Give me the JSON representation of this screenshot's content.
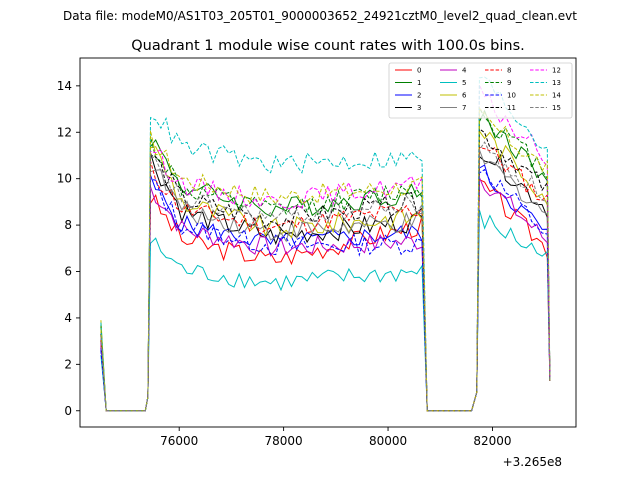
{
  "chart_data": {
    "type": "line",
    "suptitle": "Data file: modeM0/AS1T03_205T01_9000003652_24921cztM0_level2_quad_clean.evt",
    "title": "Quadrant 1 module wise count rates with 100.0s bins.",
    "xlabel": "",
    "ylabel": "",
    "x_offset_label": "+3.265e8",
    "xlim": [
      74100,
      83600
    ],
    "ylim": [
      -0.7,
      15.2
    ],
    "xticks": [
      76000,
      78000,
      80000,
      82000
    ],
    "xtick_labels": [
      "76000",
      "78000",
      "80000",
      "82000"
    ],
    "yticks": [
      0,
      2,
      4,
      6,
      8,
      10,
      12,
      14
    ],
    "ytick_labels": [
      "0",
      "2",
      "4",
      "6",
      "8",
      "10",
      "12",
      "14"
    ],
    "legend_position": "top-right",
    "segments": [
      {
        "start": 74500,
        "end": 74600
      },
      {
        "start": 75450,
        "end": 80650
      },
      {
        "start": 81750,
        "end": 83050
      }
    ],
    "gap_ranges": [
      [
        74600,
        75350
      ],
      [
        80750,
        81600
      ]
    ],
    "series": [
      {
        "name": "0",
        "color": "#ff0000",
        "dash": "solid",
        "start_level": 2.8,
        "peak": 9.2,
        "mid": 6.5,
        "end_level": 8.0,
        "seg3_peak": 9.8,
        "seg3_end": 7.0
      },
      {
        "name": "1",
        "color": "#008000",
        "dash": "solid",
        "start_level": 3.6,
        "peak": 11.8,
        "mid": 8.7,
        "end_level": 9.4,
        "seg3_peak": 12.8,
        "seg3_end": 10.0
      },
      {
        "name": "2",
        "color": "#0000ff",
        "dash": "solid",
        "start_level": 2.7,
        "peak": 9.8,
        "mid": 7.2,
        "end_level": 7.7,
        "seg3_peak": 10.4,
        "seg3_end": 7.6
      },
      {
        "name": "3",
        "color": "#000000",
        "dash": "solid",
        "start_level": 3.0,
        "peak": 10.9,
        "mid": 7.5,
        "end_level": 8.2,
        "seg3_peak": 11.4,
        "seg3_end": 8.7
      },
      {
        "name": "4",
        "color": "#bf00bf",
        "dash": "solid",
        "start_level": 2.9,
        "peak": 9.6,
        "mid": 7.0,
        "end_level": 7.3,
        "seg3_peak": 10.1,
        "seg3_end": 7.3
      },
      {
        "name": "5",
        "color": "#00bfbf",
        "dash": "solid",
        "start_level": 2.4,
        "peak": 7.3,
        "mid": 5.5,
        "end_level": 6.0,
        "seg3_peak": 8.3,
        "seg3_end": 6.6
      },
      {
        "name": "6",
        "color": "#bfbf00",
        "dash": "solid",
        "start_level": 3.9,
        "peak": 11.6,
        "mid": 7.8,
        "end_level": 8.4,
        "seg3_peak": 12.2,
        "seg3_end": 9.2
      },
      {
        "name": "7",
        "color": "#808080",
        "dash": "solid",
        "start_level": 3.4,
        "peak": 10.7,
        "mid": 7.7,
        "end_level": 8.1,
        "seg3_peak": 11.0,
        "seg3_end": 8.5
      },
      {
        "name": "8",
        "color": "#ff0000",
        "dash": "dashed",
        "start_level": 3.1,
        "peak": 10.4,
        "mid": 7.9,
        "end_level": 8.7,
        "seg3_peak": 11.6,
        "seg3_end": 9.0
      },
      {
        "name": "9",
        "color": "#008000",
        "dash": "dashed",
        "start_level": 3.7,
        "peak": 11.6,
        "mid": 8.6,
        "end_level": 9.6,
        "seg3_peak": 12.9,
        "seg3_end": 10.3
      },
      {
        "name": "10",
        "color": "#0000ff",
        "dash": "dashed",
        "start_level": 2.6,
        "peak": 9.9,
        "mid": 7.1,
        "end_level": 7.2,
        "seg3_peak": 10.6,
        "seg3_end": 7.6
      },
      {
        "name": "11",
        "color": "#000000",
        "dash": "dashed",
        "start_level": 3.3,
        "peak": 11.1,
        "mid": 8.2,
        "end_level": 9.0,
        "seg3_peak": 12.1,
        "seg3_end": 9.5
      },
      {
        "name": "12",
        "color": "#ff00ff",
        "dash": "dashed",
        "start_level": 3.2,
        "peak": 11.4,
        "mid": 9.0,
        "end_level": 9.8,
        "seg3_peak": 13.6,
        "seg3_end": 10.8
      },
      {
        "name": "13",
        "color": "#00bfbf",
        "dash": "dashed",
        "start_level": 3.8,
        "peak": 13.0,
        "mid": 10.6,
        "end_level": 10.9,
        "seg3_peak": 14.4,
        "seg3_end": 11.3
      },
      {
        "name": "14",
        "color": "#bfbf00",
        "dash": "dashed",
        "start_level": 3.5,
        "peak": 11.7,
        "mid": 9.2,
        "end_level": 9.7,
        "seg3_peak": 12.7,
        "seg3_end": 10.4
      },
      {
        "name": "15",
        "color": "#808080",
        "dash": "dashed",
        "start_level": 3.2,
        "peak": 10.8,
        "mid": 8.3,
        "end_level": 8.9,
        "seg3_peak": 11.4,
        "seg3_end": 9.2
      }
    ]
  }
}
